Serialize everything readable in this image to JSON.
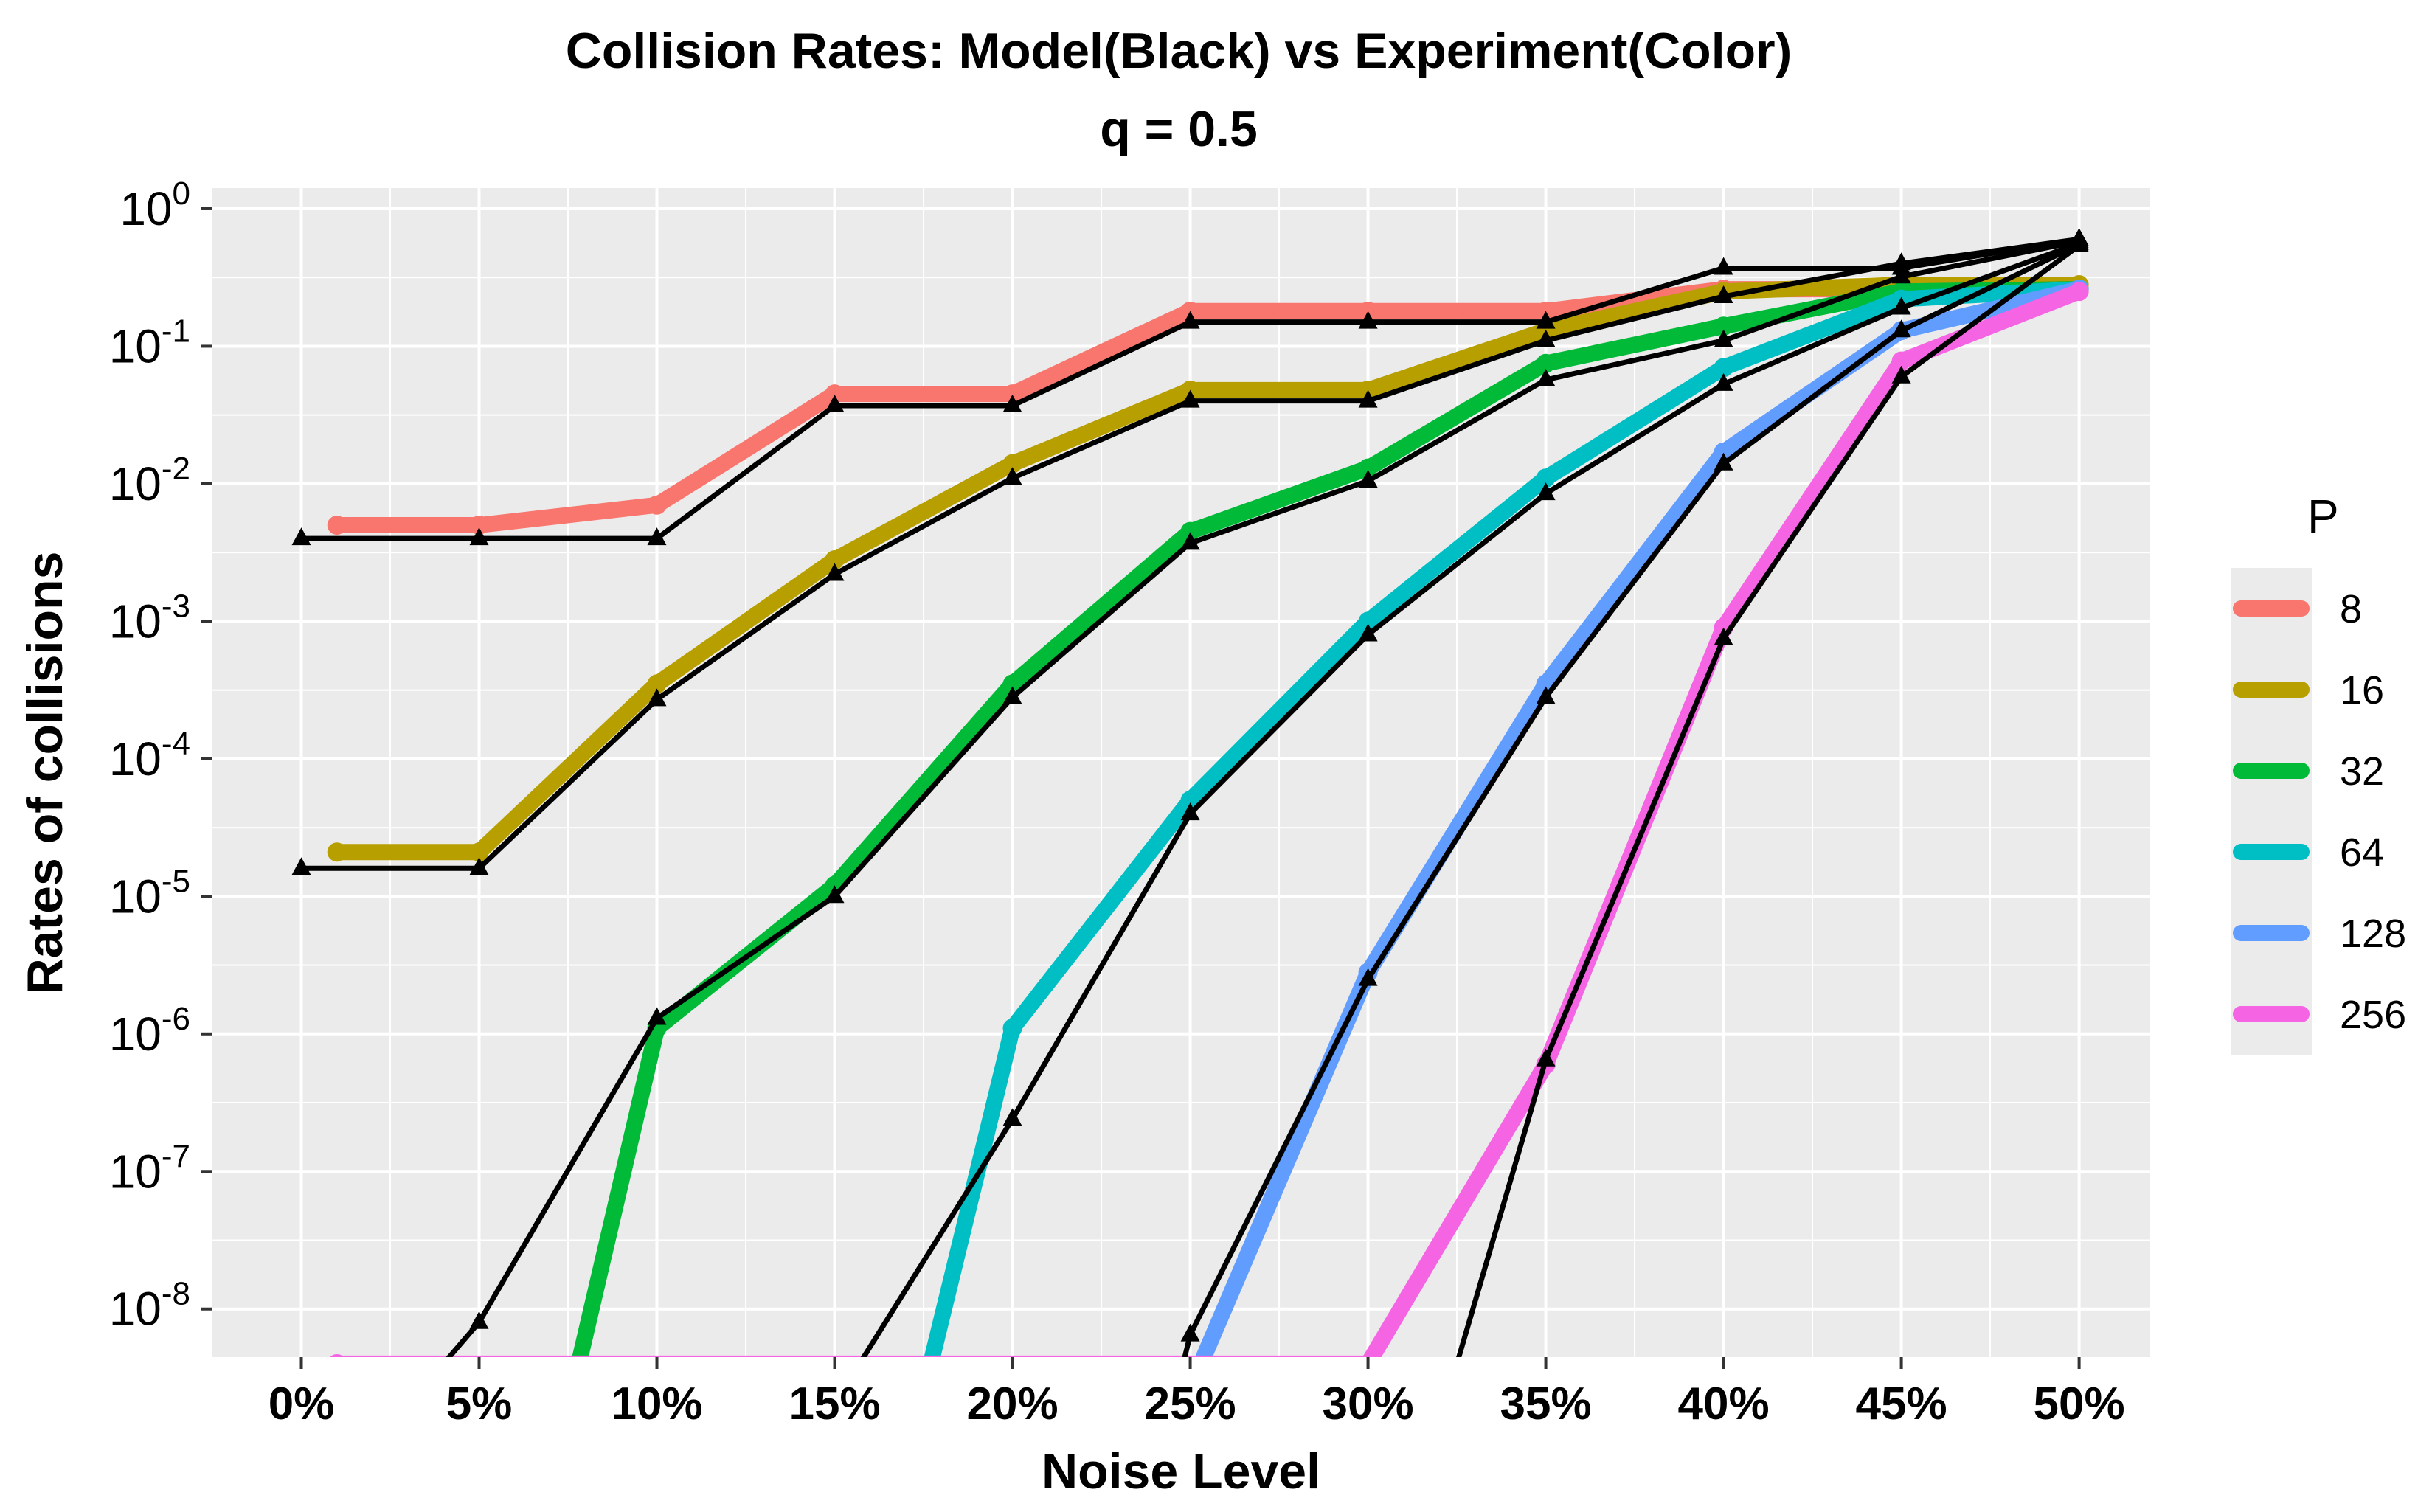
{
  "chart_data": {
    "type": "line",
    "title": "Collision Rates: Model(Black) vs Experiment(Color)",
    "subtitle": "q = 0.5",
    "xlabel": "Noise Level",
    "ylabel": "Rates of collisions",
    "x_ticks": [
      "0%",
      "5%",
      "10%",
      "15%",
      "20%",
      "25%",
      "30%",
      "35%",
      "40%",
      "45%",
      "50%"
    ],
    "y_ticks": [
      {
        "base": "10",
        "exp": "0",
        "value": 1
      },
      {
        "base": "10",
        "exp": "-1",
        "value": 0.1
      },
      {
        "base": "10",
        "exp": "-2",
        "value": 0.01
      },
      {
        "base": "10",
        "exp": "-3",
        "value": 0.001
      },
      {
        "base": "10",
        "exp": "-4",
        "value": 0.0001
      },
      {
        "base": "10",
        "exp": "-5",
        "value": 1e-05
      },
      {
        "base": "10",
        "exp": "-6",
        "value": 1e-06
      },
      {
        "base": "10",
        "exp": "-7",
        "value": 1e-07
      },
      {
        "base": "10",
        "exp": "-8",
        "value": 1e-08
      }
    ],
    "y_scale": "log10",
    "xlim": [
      -0.025,
      0.52
    ],
    "ylim_log10": [
      -8.35,
      0.15
    ],
    "floor_value": 4e-09,
    "legend": {
      "title": "P",
      "entries": [
        {
          "label": "8",
          "color": "#F8766D"
        },
        {
          "label": "16",
          "color": "#B79F00"
        },
        {
          "label": "32",
          "color": "#00BA38"
        },
        {
          "label": "64",
          "color": "#00BFC4"
        },
        {
          "label": "128",
          "color": "#619CFF"
        },
        {
          "label": "256",
          "color": "#F564E3"
        }
      ]
    },
    "experiment_series": [
      {
        "name": "8",
        "color": "#F8766D",
        "points": [
          [
            0.01,
            0.005
          ],
          [
            0.05,
            0.005
          ],
          [
            0.1,
            0.007
          ],
          [
            0.15,
            0.045
          ],
          [
            0.2,
            0.045
          ],
          [
            0.25,
            0.18
          ],
          [
            0.3,
            0.18
          ],
          [
            0.35,
            0.18
          ],
          [
            0.4,
            0.26
          ],
          [
            0.45,
            0.26
          ],
          [
            0.5,
            0.26
          ]
        ]
      },
      {
        "name": "16",
        "color": "#B79F00",
        "points": [
          [
            0.01,
            2.1e-05
          ],
          [
            0.05,
            2.1e-05
          ],
          [
            0.1,
            0.00035
          ],
          [
            0.15,
            0.0028
          ],
          [
            0.2,
            0.014
          ],
          [
            0.25,
            0.048
          ],
          [
            0.3,
            0.048
          ],
          [
            0.35,
            0.13
          ],
          [
            0.4,
            0.25
          ],
          [
            0.45,
            0.28
          ],
          [
            0.5,
            0.28
          ]
        ]
      },
      {
        "name": "32",
        "color": "#00BA38",
        "points": [
          [
            0.078,
            4e-09
          ],
          [
            0.1,
            1.1e-06
          ],
          [
            0.15,
            1.2e-05
          ],
          [
            0.2,
            0.00035
          ],
          [
            0.25,
            0.0045
          ],
          [
            0.3,
            0.013
          ],
          [
            0.35,
            0.075
          ],
          [
            0.4,
            0.14
          ],
          [
            0.45,
            0.25
          ],
          [
            0.5,
            0.26
          ]
        ]
      },
      {
        "name": "64",
        "color": "#00BFC4",
        "points": [
          [
            0.177,
            4e-09
          ],
          [
            0.2,
            1.1e-06
          ],
          [
            0.25,
            5e-05
          ],
          [
            0.3,
            0.001
          ],
          [
            0.35,
            0.011
          ],
          [
            0.4,
            0.07
          ],
          [
            0.45,
            0.22
          ],
          [
            0.5,
            0.26
          ]
        ]
      },
      {
        "name": "128",
        "color": "#619CFF",
        "points": [
          [
            0.253,
            4e-09
          ],
          [
            0.3,
            2.8e-06
          ],
          [
            0.35,
            0.00035
          ],
          [
            0.4,
            0.017
          ],
          [
            0.45,
            0.13
          ],
          [
            0.5,
            0.26
          ]
        ]
      },
      {
        "name": "256",
        "color": "#F564E3",
        "points": [
          [
            0.01,
            4e-09
          ],
          [
            0.3,
            4e-09
          ],
          [
            0.35,
            6e-07
          ],
          [
            0.4,
            0.0009
          ],
          [
            0.45,
            0.078
          ],
          [
            0.5,
            0.25
          ]
        ]
      }
    ],
    "model_series": [
      {
        "name": "8",
        "points": [
          [
            0.0,
            0.004
          ],
          [
            0.05,
            0.004
          ],
          [
            0.1,
            0.004
          ],
          [
            0.15,
            0.037
          ],
          [
            0.2,
            0.037
          ],
          [
            0.25,
            0.15
          ],
          [
            0.3,
            0.15
          ],
          [
            0.35,
            0.15
          ],
          [
            0.4,
            0.37
          ],
          [
            0.45,
            0.37
          ],
          [
            0.5,
            0.6
          ]
        ]
      },
      {
        "name": "16",
        "points": [
          [
            0.0,
            1.6e-05
          ],
          [
            0.05,
            1.6e-05
          ],
          [
            0.1,
            0.00027
          ],
          [
            0.15,
            0.0022
          ],
          [
            0.2,
            0.011
          ],
          [
            0.25,
            0.04
          ],
          [
            0.3,
            0.04
          ],
          [
            0.35,
            0.11
          ],
          [
            0.4,
            0.23
          ],
          [
            0.45,
            0.4
          ],
          [
            0.5,
            0.6
          ]
        ]
      },
      {
        "name": "32",
        "points": [
          [
            0.04,
            4e-09
          ],
          [
            0.05,
            8e-09
          ],
          [
            0.1,
            1.3e-06
          ],
          [
            0.15,
            1e-05
          ],
          [
            0.2,
            0.00028
          ],
          [
            0.25,
            0.0037
          ],
          [
            0.3,
            0.0105
          ],
          [
            0.35,
            0.057
          ],
          [
            0.4,
            0.11
          ],
          [
            0.45,
            0.32
          ],
          [
            0.5,
            0.58
          ]
        ]
      },
      {
        "name": "64",
        "points": [
          [
            0.157,
            4e-09
          ],
          [
            0.2,
            2.4e-07
          ],
          [
            0.25,
            4e-05
          ],
          [
            0.3,
            0.0008
          ],
          [
            0.35,
            0.0085
          ],
          [
            0.4,
            0.053
          ],
          [
            0.45,
            0.19
          ],
          [
            0.5,
            0.56
          ]
        ]
      },
      {
        "name": "128",
        "points": [
          [
            0.248,
            4e-09
          ],
          [
            0.25,
            6.5e-09
          ],
          [
            0.3,
            2.5e-06
          ],
          [
            0.35,
            0.00028
          ],
          [
            0.4,
            0.014
          ],
          [
            0.45,
            0.13
          ],
          [
            0.5,
            0.55
          ]
        ]
      },
      {
        "name": "256",
        "points": [
          [
            0.325,
            4e-09
          ],
          [
            0.35,
            6.5e-07
          ],
          [
            0.4,
            0.00075
          ],
          [
            0.45,
            0.06
          ],
          [
            0.5,
            0.54
          ]
        ]
      }
    ],
    "grid": true,
    "legend_position": "right"
  }
}
